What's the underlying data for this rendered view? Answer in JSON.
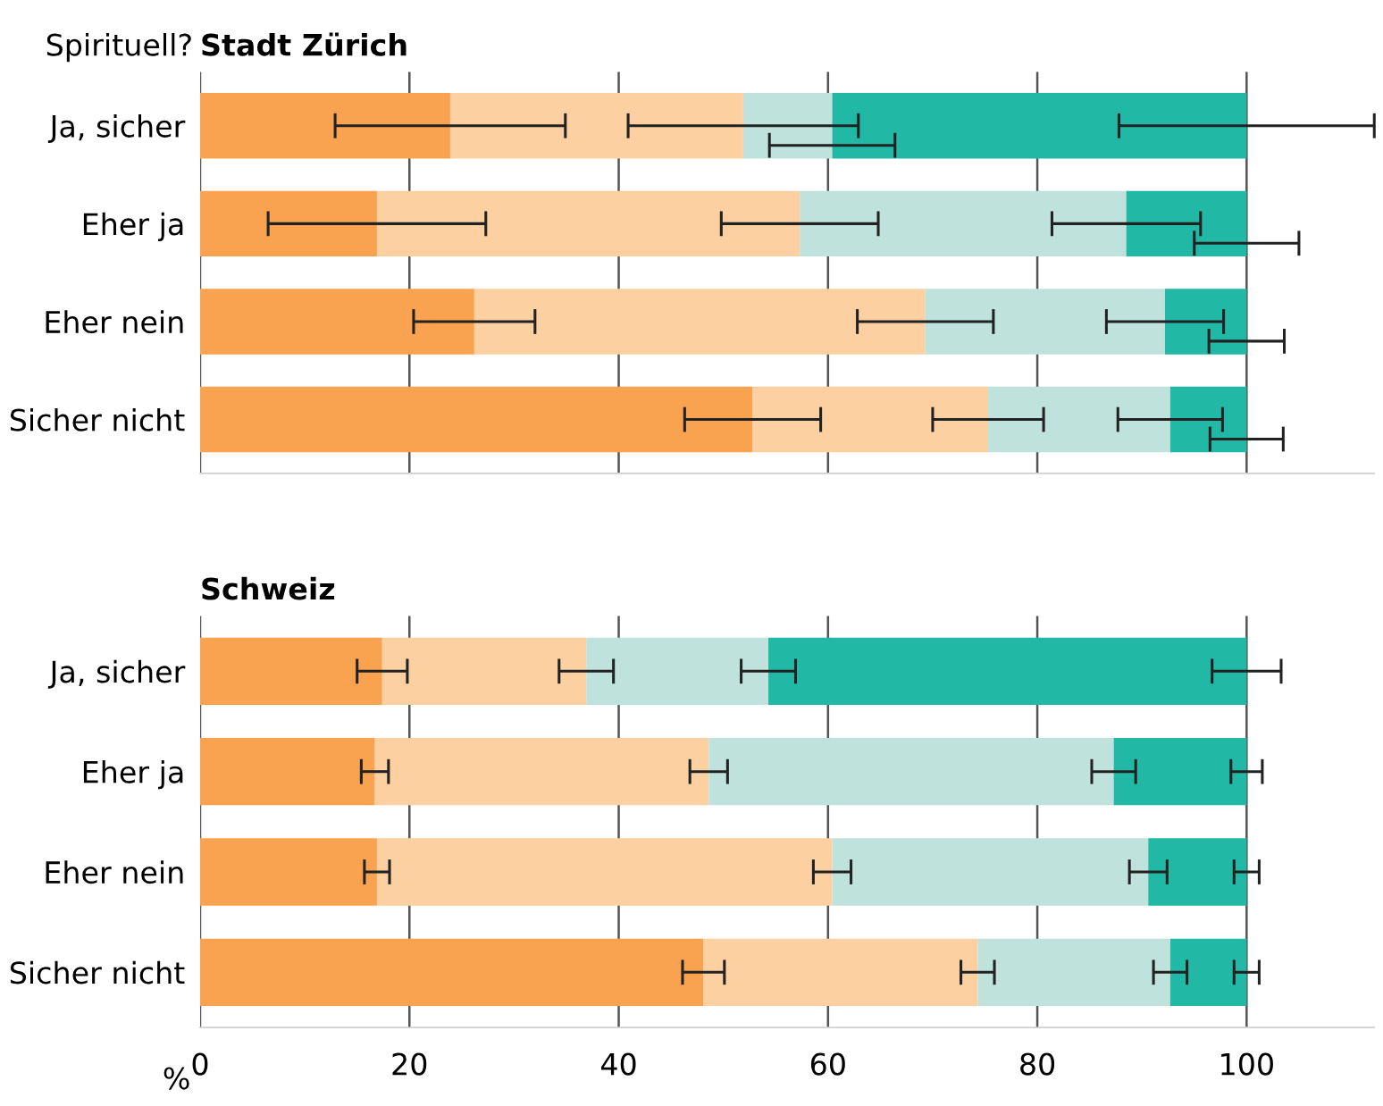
{
  "chart_data": [
    {
      "type": "bar",
      "orientation": "horizontal",
      "stacked": true,
      "title": "Stadt Zürich",
      "ylabel": "Spirituell?",
      "categories": [
        "Ja, sicher",
        "Eher ja",
        "Eher nein",
        "Sicher nicht"
      ],
      "xlim": [
        0,
        112.2
      ],
      "xticks": [
        0,
        20,
        40,
        60,
        80,
        100
      ],
      "grid": "x",
      "legend": false,
      "tick_labels": "y",
      "series": [
        {
          "color": "#f9a350",
          "values": [
            23.9,
            16.9,
            26.2,
            52.8
          ],
          "errors": [
            11.0,
            10.4,
            5.8,
            6.5
          ]
        },
        {
          "color": "#fcd0a1",
          "values": [
            28.0,
            40.4,
            43.1,
            22.5
          ],
          "errors": [
            11.0,
            7.5,
            6.5,
            5.3
          ]
        },
        {
          "color": "#bfe3dc",
          "values": [
            8.5,
            31.2,
            22.9,
            17.4
          ],
          "errors": [
            6.0,
            7.1,
            5.6,
            5.0
          ]
        },
        {
          "color": "#21b9a6",
          "values": [
            39.6,
            11.5,
            7.8,
            7.3
          ],
          "errors": [
            12.2,
            5.0,
            3.6,
            3.5
          ]
        }
      ]
    },
    {
      "type": "bar",
      "orientation": "horizontal",
      "stacked": true,
      "title": "Schweiz",
      "xlabel": "%",
      "categories": [
        "Ja, sicher",
        "Eher ja",
        "Eher nein",
        "Sicher nicht"
      ],
      "xlim": [
        0,
        112.2
      ],
      "xticks": [
        0,
        20,
        40,
        60,
        80,
        100
      ],
      "grid": "x",
      "legend": false,
      "series": [
        {
          "color": "#f9a350",
          "values": [
            17.4,
            16.7,
            16.9,
            48.1
          ],
          "errors": [
            2.4,
            1.3,
            1.2,
            2.0
          ]
        },
        {
          "color": "#fcd0a1",
          "values": [
            19.5,
            31.9,
            43.5,
            26.2
          ],
          "errors": [
            2.6,
            1.8,
            1.8,
            1.6
          ]
        },
        {
          "color": "#bfe3dc",
          "values": [
            17.4,
            38.7,
            30.2,
            18.4
          ],
          "errors": [
            2.6,
            2.1,
            1.8,
            1.6
          ]
        },
        {
          "color": "#21b9a6",
          "values": [
            45.7,
            12.7,
            9.4,
            7.3
          ],
          "errors": [
            3.3,
            1.5,
            1.2,
            1.2
          ]
        }
      ]
    }
  ]
}
